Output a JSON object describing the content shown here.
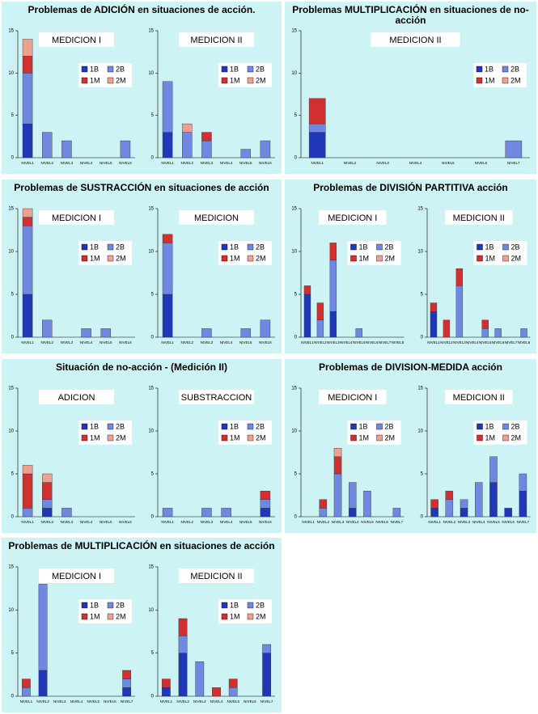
{
  "chart_data": [
    {
      "type": "bar",
      "stacked": true,
      "title": "Problemas de ADICIÓN en situaciones de acción.",
      "subtitle": "MEDICION I",
      "categories": [
        "NIVEL1",
        "NIVEL2",
        "NIVEL3",
        "NIVEL4",
        "NIVEL5",
        "NIVEL6"
      ],
      "series": [
        {
          "name": "1B",
          "color": "#2038b8",
          "values": [
            4,
            0,
            0,
            0,
            0,
            0
          ]
        },
        {
          "name": "2B",
          "color": "#7088e0",
          "values": [
            6,
            3,
            2,
            0,
            0,
            2
          ]
        },
        {
          "name": "1M",
          "color": "#d03030",
          "values": [
            2,
            0,
            0,
            0,
            0,
            0
          ]
        },
        {
          "name": "2M",
          "color": "#f0a090",
          "values": [
            2,
            0,
            0,
            0,
            0,
            0
          ]
        }
      ],
      "ylim": [
        0,
        15
      ],
      "yticks": [
        0,
        5,
        10,
        15
      ]
    },
    {
      "type": "bar",
      "stacked": true,
      "subtitle": "MEDICION II",
      "categories": [
        "NIVEL1",
        "NIVEL2",
        "NIVEL3",
        "NIVEL4",
        "NIVEL5",
        "NIVEL6"
      ],
      "series": [
        {
          "name": "1B",
          "color": "#2038b8",
          "values": [
            3,
            0,
            0,
            0,
            0,
            0
          ]
        },
        {
          "name": "2B",
          "color": "#7088e0",
          "values": [
            6,
            3,
            2,
            0,
            1,
            2
          ]
        },
        {
          "name": "1M",
          "color": "#d03030",
          "values": [
            0,
            0,
            1,
            0,
            0,
            0
          ]
        },
        {
          "name": "2M",
          "color": "#f0a090",
          "values": [
            0,
            1,
            0,
            0,
            0,
            0
          ]
        }
      ],
      "ylim": [
        0,
        15
      ],
      "yticks": [
        0,
        5,
        10,
        15
      ]
    },
    {
      "type": "bar",
      "stacked": true,
      "title": "Problemas MULTIPLICACIÓN en situaciones de no-acción",
      "subtitle": "MEDICION II",
      "categories": [
        "NIVEL1",
        "NIVEL2",
        "NIVEL3",
        "NIVEL4",
        "NIVEL5",
        "NIVEL6",
        "NIVEL7"
      ],
      "series": [
        {
          "name": "1B",
          "color": "#2038b8",
          "values": [
            3,
            0,
            0,
            0,
            0,
            0,
            0
          ]
        },
        {
          "name": "2B",
          "color": "#7088e0",
          "values": [
            1,
            0,
            0,
            0,
            0,
            0,
            2
          ]
        },
        {
          "name": "1M",
          "color": "#d03030",
          "values": [
            3,
            0,
            0,
            0,
            0,
            0,
            0
          ]
        },
        {
          "name": "2M",
          "color": "#f0a090",
          "values": [
            0,
            0,
            0,
            0,
            0,
            0,
            0
          ]
        }
      ],
      "ylim": [
        0,
        15
      ],
      "yticks": [
        0,
        5,
        10,
        15
      ]
    },
    {
      "type": "bar",
      "stacked": true,
      "title": "Problemas de SUSTRACCIÓN en situaciones de acción",
      "subtitle": "MEDICION I",
      "categories": [
        "NIVEL1",
        "NIVEL2",
        "NIVEL3",
        "NIVEL4",
        "NIVEL5",
        "NIVEL6"
      ],
      "series": [
        {
          "name": "1B",
          "color": "#2038b8",
          "values": [
            5,
            0,
            0,
            0,
            0,
            0
          ]
        },
        {
          "name": "2B",
          "color": "#7088e0",
          "values": [
            8,
            2,
            0,
            1,
            1,
            0
          ]
        },
        {
          "name": "1M",
          "color": "#d03030",
          "values": [
            1,
            0,
            0,
            0,
            0,
            0
          ]
        },
        {
          "name": "2M",
          "color": "#f0a090",
          "values": [
            1,
            0,
            0,
            0,
            0,
            0
          ]
        }
      ],
      "ylim": [
        0,
        15
      ],
      "yticks": [
        0,
        5,
        10,
        15
      ]
    },
    {
      "type": "bar",
      "stacked": true,
      "subtitle": "MEDICION",
      "categories": [
        "NIVEL1",
        "NIVEL2",
        "NIVEL3",
        "NIVEL4",
        "NIVEL5",
        "NIVEL6"
      ],
      "series": [
        {
          "name": "1B",
          "color": "#2038b8",
          "values": [
            5,
            0,
            0,
            0,
            0,
            0
          ]
        },
        {
          "name": "2B",
          "color": "#7088e0",
          "values": [
            6,
            0,
            1,
            0,
            1,
            2
          ]
        },
        {
          "name": "1M",
          "color": "#d03030",
          "values": [
            1,
            0,
            0,
            0,
            0,
            0
          ]
        },
        {
          "name": "2M",
          "color": "#f0a090",
          "values": [
            0,
            0,
            0,
            0,
            0,
            0
          ]
        }
      ],
      "ylim": [
        0,
        15
      ],
      "yticks": [
        0,
        5,
        10,
        15
      ]
    },
    {
      "type": "bar",
      "stacked": true,
      "title": "Problemas de DIVISIÓN PARTITIVA acción",
      "subtitle": "MEDICION I",
      "categories": [
        "NIVEL1",
        "NIVEL2",
        "NIVEL3",
        "NIVEL4",
        "NIVEL5",
        "NIVEL6",
        "NIVEL7",
        "NIVEL8"
      ],
      "series": [
        {
          "name": "1B",
          "color": "#2038b8",
          "values": [
            5,
            0,
            3,
            0,
            0,
            0,
            0,
            0
          ]
        },
        {
          "name": "2B",
          "color": "#7088e0",
          "values": [
            0,
            2,
            6,
            0,
            1,
            0,
            0,
            0
          ]
        },
        {
          "name": "1M",
          "color": "#d03030",
          "values": [
            1,
            2,
            2,
            0,
            0,
            0,
            0,
            0
          ]
        },
        {
          "name": "2M",
          "color": "#f0a090",
          "values": [
            0,
            0,
            0,
            0,
            0,
            0,
            0,
            0
          ]
        }
      ],
      "ylim": [
        0,
        15
      ],
      "yticks": [
        0,
        5,
        10,
        15
      ]
    },
    {
      "type": "bar",
      "stacked": true,
      "subtitle": "MEDICION II",
      "categories": [
        "NIVEL1",
        "NIVEL2",
        "NIVEL3",
        "NIVEL4",
        "NIVEL5",
        "NIVEL6",
        "NIVEL7",
        "NIVEL8"
      ],
      "series": [
        {
          "name": "1B",
          "color": "#2038b8",
          "values": [
            3,
            0,
            0,
            0,
            0,
            0,
            0,
            0
          ]
        },
        {
          "name": "2B",
          "color": "#7088e0",
          "values": [
            0,
            0,
            6,
            0,
            1,
            1,
            0,
            1
          ]
        },
        {
          "name": "1M",
          "color": "#d03030",
          "values": [
            1,
            2,
            2,
            0,
            1,
            0,
            0,
            0
          ]
        },
        {
          "name": "2M",
          "color": "#f0a090",
          "values": [
            0,
            0,
            0,
            0,
            0,
            0,
            0,
            0
          ]
        }
      ],
      "ylim": [
        0,
        15
      ],
      "yticks": [
        0,
        5,
        10,
        15
      ]
    },
    {
      "type": "bar",
      "stacked": true,
      "title": "Situación de no-acción - (Medición II)",
      "subtitle": "ADICION",
      "categories": [
        "NIVEL1",
        "NIVEL2",
        "NIVEL3",
        "NIVEL4",
        "NIVEL5",
        "NIVEL6"
      ],
      "series": [
        {
          "name": "1B",
          "color": "#2038b8",
          "values": [
            0,
            1,
            0,
            0,
            0,
            0
          ]
        },
        {
          "name": "2B",
          "color": "#7088e0",
          "values": [
            1,
            1,
            1,
            0,
            0,
            0
          ]
        },
        {
          "name": "1M",
          "color": "#d03030",
          "values": [
            4,
            2,
            0,
            0,
            0,
            0
          ]
        },
        {
          "name": "2M",
          "color": "#f0a090",
          "values": [
            1,
            1,
            0,
            0,
            0,
            0
          ]
        }
      ],
      "ylim": [
        0,
        15
      ],
      "yticks": [
        0,
        5,
        10,
        15
      ]
    },
    {
      "type": "bar",
      "stacked": true,
      "subtitle": "SUBSTRACCION",
      "categories": [
        "NIVEL1",
        "NIVEL2",
        "NIVEL3",
        "NIVEL4",
        "NIVEL5",
        "NIVEL6"
      ],
      "series": [
        {
          "name": "1B",
          "color": "#2038b8",
          "values": [
            0,
            0,
            0,
            0,
            0,
            1
          ]
        },
        {
          "name": "2B",
          "color": "#7088e0",
          "values": [
            1,
            0,
            1,
            1,
            0,
            1
          ]
        },
        {
          "name": "1M",
          "color": "#d03030",
          "values": [
            0,
            0,
            0,
            0,
            0,
            1
          ]
        },
        {
          "name": "2M",
          "color": "#f0a090",
          "values": [
            0,
            0,
            0,
            0,
            0,
            0
          ]
        }
      ],
      "ylim": [
        0,
        15
      ],
      "yticks": [
        0,
        5,
        10,
        15
      ]
    },
    {
      "type": "bar",
      "stacked": true,
      "title": "Problemas de DIVISION-MEDIDA acción",
      "subtitle": "MEDICION I",
      "categories": [
        "NIVEL1",
        "NIVEL2",
        "NIVEL3",
        "NIVEL4",
        "NIVEL5",
        "NIVEL6",
        "NIVEL7"
      ],
      "series": [
        {
          "name": "1B",
          "color": "#2038b8",
          "values": [
            0,
            0,
            0,
            1,
            0,
            0,
            0
          ]
        },
        {
          "name": "2B",
          "color": "#7088e0",
          "values": [
            0,
            1,
            5,
            3,
            3,
            0,
            1
          ]
        },
        {
          "name": "1M",
          "color": "#d03030",
          "values": [
            0,
            1,
            2,
            0,
            0,
            0,
            0
          ]
        },
        {
          "name": "2M",
          "color": "#f0a090",
          "values": [
            0,
            0,
            1,
            0,
            0,
            0,
            0
          ]
        }
      ],
      "ylim": [
        0,
        15
      ],
      "yticks": [
        0,
        5,
        10,
        15
      ]
    },
    {
      "type": "bar",
      "stacked": true,
      "subtitle": "MEDICION II",
      "categories": [
        "NIVEL1",
        "NIVEL2",
        "NIVEL3",
        "NIVEL4",
        "NIVEL5",
        "NIVEL6",
        "NIVEL7"
      ],
      "series": [
        {
          "name": "1B",
          "color": "#2038b8",
          "values": [
            1,
            0,
            1,
            0,
            4,
            1,
            3
          ]
        },
        {
          "name": "2B",
          "color": "#7088e0",
          "values": [
            0,
            2,
            1,
            4,
            3,
            0,
            2
          ]
        },
        {
          "name": "1M",
          "color": "#d03030",
          "values": [
            1,
            1,
            0,
            0,
            0,
            0,
            0
          ]
        },
        {
          "name": "2M",
          "color": "#f0a090",
          "values": [
            0,
            0,
            0,
            0,
            0,
            0,
            0
          ]
        }
      ],
      "ylim": [
        0,
        15
      ],
      "yticks": [
        0,
        5,
        10,
        15
      ]
    },
    {
      "type": "bar",
      "stacked": true,
      "title": "Problemas de MULTIPLICACIÓN en situaciones de acción",
      "subtitle": "MEDICION I",
      "categories": [
        "NIVEL1",
        "NIVEL2",
        "NIVEL3",
        "NIVEL4",
        "NIVEL5",
        "NIVEL6",
        "NIVEL7"
      ],
      "series": [
        {
          "name": "1B",
          "color": "#2038b8",
          "values": [
            0,
            3,
            0,
            0,
            0,
            0,
            1
          ]
        },
        {
          "name": "2B",
          "color": "#7088e0",
          "values": [
            1,
            10,
            0,
            0,
            0,
            0,
            1
          ]
        },
        {
          "name": "1M",
          "color": "#d03030",
          "values": [
            1,
            0,
            0,
            0,
            0,
            0,
            1
          ]
        },
        {
          "name": "2M",
          "color": "#f0a090",
          "values": [
            0,
            0,
            0,
            0,
            0,
            0,
            0
          ]
        }
      ],
      "ylim": [
        0,
        15
      ],
      "yticks": [
        0,
        5,
        10,
        15
      ]
    },
    {
      "type": "bar",
      "stacked": true,
      "subtitle": "MEDICION II",
      "categories": [
        "NIVEL1",
        "NIVEL2",
        "NIVEL3",
        "NIVEL4",
        "NIVEL5",
        "NIVEL6",
        "NIVEL7"
      ],
      "series": [
        {
          "name": "1B",
          "color": "#2038b8",
          "values": [
            1,
            5,
            0,
            0,
            0,
            0,
            5
          ]
        },
        {
          "name": "2B",
          "color": "#7088e0",
          "values": [
            0,
            2,
            4,
            0,
            1,
            0,
            1
          ]
        },
        {
          "name": "1M",
          "color": "#d03030",
          "values": [
            1,
            2,
            0,
            1,
            1,
            0,
            0
          ]
        },
        {
          "name": "2M",
          "color": "#f0a090",
          "values": [
            0,
            0,
            0,
            0,
            0,
            0,
            0
          ]
        }
      ],
      "ylim": [
        0,
        15
      ],
      "yticks": [
        0,
        5,
        10,
        15
      ]
    }
  ]
}
